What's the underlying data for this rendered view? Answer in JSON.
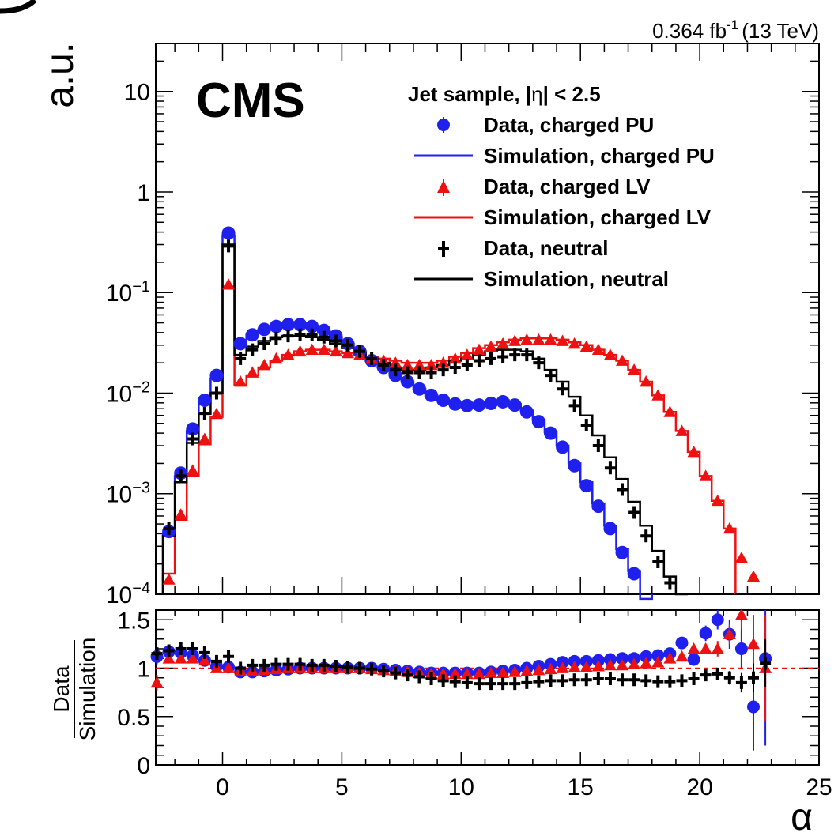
{
  "header": {
    "lumi_value": "0.364 fb",
    "lumi_exp": "-1",
    "lumi_energy": "(13 TeV)"
  },
  "chart_data": [
    {
      "type": "line",
      "name": "main-panel",
      "ylabel": "a.u.",
      "experiment": "CMS",
      "legend_title_prefix": "Jet sample, |",
      "legend_title_mid": "η",
      "legend_title_suffix": "| < 2.5",
      "legend_position": "top-right",
      "yscale": "log",
      "xlim": [
        -2.8,
        25
      ],
      "ylim": [
        0.0001,
        30
      ],
      "xticks": [
        0,
        5,
        10,
        15,
        20,
        25
      ],
      "yticks": [
        {
          "value": 10,
          "base": "10",
          "exp": ""
        },
        {
          "value": 1,
          "base": "1",
          "exp": ""
        },
        {
          "value": 0.1,
          "base": "10",
          "exp": "−1"
        },
        {
          "value": 0.01,
          "base": "10",
          "exp": "−2"
        },
        {
          "value": 0.001,
          "base": "10",
          "exp": "−3"
        },
        {
          "value": 0.0001,
          "base": "10",
          "exp": "−4"
        }
      ],
      "x": [
        -2.25,
        -1.75,
        -1.25,
        -0.75,
        -0.25,
        0.25,
        0.75,
        1.25,
        1.75,
        2.25,
        2.75,
        3.25,
        3.75,
        4.25,
        4.75,
        5.25,
        5.75,
        6.25,
        6.75,
        7.25,
        7.75,
        8.25,
        8.75,
        9.25,
        9.75,
        10.25,
        10.75,
        11.25,
        11.75,
        12.25,
        12.75,
        13.25,
        13.75,
        14.25,
        14.75,
        15.25,
        15.75,
        16.25,
        16.75,
        17.25,
        17.75,
        18.25,
        18.75,
        19.25,
        19.75,
        20.25,
        20.75,
        21.25,
        21.75,
        22.25,
        22.75
      ],
      "series": [
        {
          "name": "Data, charged PU",
          "kind": "data",
          "marker": "circle",
          "color": "#2020ee",
          "values": [
            0.00042,
            0.0016,
            0.0044,
            0.0085,
            0.015,
            0.39,
            0.031,
            0.038,
            0.043,
            0.046,
            0.048,
            0.048,
            0.046,
            0.042,
            0.037,
            0.031,
            0.026,
            0.021,
            0.018,
            0.015,
            0.013,
            0.011,
            0.0095,
            0.0085,
            0.0078,
            0.0075,
            0.0076,
            0.0079,
            0.0082,
            0.0076,
            0.0065,
            0.0052,
            0.004,
            0.0029,
            0.0019,
            0.0012,
            0.00075,
            0.00045,
            0.00026,
            0.00016,
            0.0001,
            null,
            null,
            null,
            null,
            null,
            null,
            null,
            null,
            null,
            null
          ]
        },
        {
          "name": "Simulation, charged PU",
          "kind": "sim",
          "color": "#2020ee",
          "values": [
            0.0004,
            0.0015,
            0.0042,
            0.008,
            0.014,
            0.37,
            0.03,
            0.038,
            0.043,
            0.046,
            0.047,
            0.047,
            0.045,
            0.041,
            0.036,
            0.031,
            0.026,
            0.021,
            0.018,
            0.015,
            0.013,
            0.011,
            0.0095,
            0.0085,
            0.008,
            0.0076,
            0.0078,
            0.0082,
            0.0085,
            0.0078,
            0.0067,
            0.0054,
            0.0041,
            0.003,
            0.002,
            0.0013,
            0.0008,
            0.00048,
            0.00028,
            0.00017,
            9e-05,
            null,
            null,
            null,
            null,
            null,
            null,
            null,
            null,
            null,
            null
          ]
        },
        {
          "name": "Data, charged LV",
          "kind": "data",
          "marker": "triangle",
          "color": "#ee1111",
          "values": [
            0.00014,
            0.00062,
            0.0017,
            0.0035,
            0.0062,
            0.12,
            0.013,
            0.016,
            0.019,
            0.022,
            0.024,
            0.026,
            0.027,
            0.027,
            0.026,
            0.025,
            0.024,
            0.022,
            0.021,
            0.02,
            0.019,
            0.019,
            0.019,
            0.02,
            0.022,
            0.024,
            0.027,
            0.029,
            0.031,
            0.033,
            0.034,
            0.034,
            0.034,
            0.033,
            0.031,
            0.029,
            0.027,
            0.024,
            0.021,
            0.017,
            0.013,
            0.0095,
            0.0065,
            0.0042,
            0.0026,
            0.0015,
            0.00085,
            0.00045,
            0.00023,
            0.00015,
            0.0001
          ]
        },
        {
          "name": "Simulation, charged LV",
          "kind": "sim",
          "color": "#ee1111",
          "values": [
            0.00016,
            0.00055,
            0.0015,
            0.0031,
            0.0058,
            0.115,
            0.012,
            0.015,
            0.018,
            0.021,
            0.024,
            0.026,
            0.027,
            0.027,
            0.026,
            0.025,
            0.024,
            0.023,
            0.022,
            0.021,
            0.02,
            0.02,
            0.02,
            0.021,
            0.023,
            0.025,
            0.028,
            0.03,
            0.032,
            0.034,
            0.035,
            0.035,
            0.035,
            0.034,
            0.032,
            0.03,
            0.027,
            0.024,
            0.021,
            0.017,
            0.013,
            0.0095,
            0.0065,
            0.0042,
            0.0026,
            0.0015,
            0.00085,
            0.00045,
            null,
            null,
            null
          ]
        },
        {
          "name": "Data, neutral",
          "kind": "data",
          "marker": "cross",
          "color": "#000000",
          "values": [
            0.00045,
            0.0015,
            0.0035,
            0.0063,
            0.01,
            0.29,
            0.022,
            0.027,
            0.031,
            0.035,
            0.037,
            0.038,
            0.038,
            0.036,
            0.033,
            0.03,
            0.026,
            0.022,
            0.019,
            0.017,
            0.016,
            0.016,
            0.016,
            0.017,
            0.018,
            0.019,
            0.021,
            0.022,
            0.023,
            0.024,
            0.024,
            0.02,
            0.015,
            0.011,
            0.0075,
            0.0048,
            0.003,
            0.0018,
            0.0011,
            0.00065,
            0.00038,
            0.00021,
            0.00013,
            null,
            null,
            null,
            null,
            null,
            null,
            null,
            null
          ]
        },
        {
          "name": "Simulation, neutral",
          "kind": "sim",
          "color": "#000000",
          "values": [
            0.00038,
            0.0013,
            0.0032,
            0.0062,
            0.01,
            0.3,
            0.024,
            0.029,
            0.033,
            0.036,
            0.037,
            0.037,
            0.036,
            0.034,
            0.031,
            0.028,
            0.025,
            0.022,
            0.02,
            0.018,
            0.017,
            0.017,
            0.018,
            0.019,
            0.021,
            0.022,
            0.024,
            0.026,
            0.027,
            0.027,
            0.026,
            0.022,
            0.017,
            0.013,
            0.0092,
            0.006,
            0.0038,
            0.0023,
            0.0014,
            0.00083,
            0.00048,
            0.00027,
            0.00015,
            0.0001,
            null,
            null,
            null,
            null,
            null,
            null,
            null
          ]
        }
      ]
    },
    {
      "type": "scatter",
      "name": "ratio-panel",
      "ylabel_top": "Data",
      "ylabel_bottom": "Simulation",
      "xlabel": "α",
      "xlim": [
        -2.8,
        25
      ],
      "ylim": [
        0,
        1.6
      ],
      "reference_line": 1,
      "xticks": [
        0,
        5,
        10,
        15,
        20,
        25
      ],
      "yticks": [
        {
          "value": 1.5,
          "label": "1.5"
        },
        {
          "value": 1,
          "label": "1"
        },
        {
          "value": 0.5,
          "label": "0.5"
        },
        {
          "value": 0,
          "label": "0"
        }
      ],
      "x": [
        -2.75,
        -2.25,
        -1.75,
        -1.25,
        -0.75,
        -0.25,
        0.25,
        0.75,
        1.25,
        1.75,
        2.25,
        2.75,
        3.25,
        3.75,
        4.25,
        4.75,
        5.25,
        5.75,
        6.25,
        6.75,
        7.25,
        7.75,
        8.25,
        8.75,
        9.25,
        9.75,
        10.25,
        10.75,
        11.25,
        11.75,
        12.25,
        12.75,
        13.25,
        13.75,
        14.25,
        14.75,
        15.25,
        15.75,
        16.25,
        16.75,
        17.25,
        17.75,
        18.25,
        18.75,
        19.25,
        19.75,
        20.25,
        20.75,
        21.25,
        21.75,
        22.25,
        22.75
      ],
      "series": [
        {
          "name": "Data, charged PU",
          "marker": "circle",
          "color": "#2020ee",
          "values": [
            1.12,
            1.17,
            1.16,
            1.13,
            1.08,
            1.02,
            1.01,
            0.96,
            0.96,
            0.97,
            0.98,
            0.99,
            1.0,
            1.0,
            1.0,
            1.0,
            1.0,
            1.0,
            1.0,
            0.99,
            0.98,
            0.97,
            0.96,
            0.95,
            0.95,
            0.95,
            0.95,
            0.95,
            0.96,
            0.97,
            0.98,
            1.0,
            1.02,
            1.04,
            1.06,
            1.07,
            1.07,
            1.08,
            1.09,
            1.1,
            1.1,
            1.12,
            1.13,
            1.15,
            1.26,
            1.09,
            1.36,
            1.5,
            1.35,
            1.2,
            0.6,
            1.1
          ],
          "errors": [
            0.08,
            0.05,
            0.04,
            0.03,
            0.02,
            0.02,
            0.01,
            0.01,
            0.01,
            0.01,
            0.01,
            0.01,
            0.01,
            0.01,
            0.01,
            0.01,
            0.01,
            0.01,
            0.01,
            0.01,
            0.01,
            0.01,
            0.01,
            0.01,
            0.01,
            0.01,
            0.01,
            0.01,
            0.01,
            0.01,
            0.01,
            0.01,
            0.01,
            0.01,
            0.01,
            0.01,
            0.01,
            0.02,
            0.02,
            0.02,
            0.03,
            0.04,
            0.05,
            0.05,
            0.06,
            0.06,
            0.08,
            0.1,
            0.15,
            0.2,
            0.45,
            0.9
          ]
        },
        {
          "name": "Data, charged LV",
          "marker": "triangle",
          "color": "#ee1111",
          "values": [
            0.85,
            1.1,
            1.1,
            1.1,
            1.08,
            1.0,
            1.0,
            0.97,
            0.97,
            0.98,
            0.99,
            1.0,
            1.0,
            1.0,
            1.0,
            1.0,
            1.0,
            1.0,
            0.99,
            0.98,
            0.97,
            0.96,
            0.95,
            0.94,
            0.94,
            0.94,
            0.94,
            0.94,
            0.95,
            0.95,
            0.96,
            0.97,
            0.98,
            0.99,
            1.0,
            1.01,
            1.01,
            1.02,
            1.03,
            1.03,
            1.04,
            1.05,
            1.06,
            1.1,
            1.12,
            1.2,
            1.2,
            1.2,
            1.35,
            1.55,
            1.25,
            1.0
          ],
          "errors": [
            0.08,
            0.05,
            0.04,
            0.03,
            0.02,
            0.02,
            0.01,
            0.01,
            0.01,
            0.01,
            0.01,
            0.01,
            0.01,
            0.01,
            0.01,
            0.01,
            0.01,
            0.01,
            0.01,
            0.01,
            0.01,
            0.01,
            0.01,
            0.01,
            0.01,
            0.01,
            0.01,
            0.01,
            0.01,
            0.01,
            0.01,
            0.01,
            0.01,
            0.01,
            0.01,
            0.01,
            0.01,
            0.01,
            0.01,
            0.01,
            0.01,
            0.02,
            0.02,
            0.03,
            0.03,
            0.04,
            0.05,
            0.08,
            0.1,
            0.15,
            0.3,
            0.55
          ]
        },
        {
          "name": "Data, neutral",
          "marker": "cross",
          "color": "#000000",
          "values": [
            1.15,
            1.18,
            1.2,
            1.2,
            1.16,
            1.07,
            1.12,
            1.0,
            1.03,
            1.03,
            1.04,
            1.04,
            1.04,
            1.03,
            1.03,
            1.02,
            1.01,
            1.0,
            0.99,
            0.97,
            0.95,
            0.93,
            0.91,
            0.89,
            0.87,
            0.86,
            0.85,
            0.84,
            0.84,
            0.84,
            0.84,
            0.85,
            0.86,
            0.87,
            0.87,
            0.88,
            0.88,
            0.89,
            0.89,
            0.88,
            0.88,
            0.87,
            0.86,
            0.86,
            0.87,
            0.89,
            0.93,
            0.94,
            0.9,
            0.85,
            0.9,
            1.05
          ],
          "errors": [
            0.06,
            0.04,
            0.03,
            0.03,
            0.02,
            0.02,
            0.01,
            0.01,
            0.01,
            0.01,
            0.01,
            0.01,
            0.01,
            0.01,
            0.01,
            0.01,
            0.01,
            0.01,
            0.01,
            0.01,
            0.01,
            0.01,
            0.01,
            0.01,
            0.01,
            0.01,
            0.01,
            0.01,
            0.01,
            0.01,
            0.01,
            0.01,
            0.01,
            0.01,
            0.01,
            0.01,
            0.01,
            0.02,
            0.02,
            0.02,
            0.03,
            0.03,
            0.03,
            0.04,
            0.04,
            0.05,
            0.05,
            0.06,
            0.07,
            0.1,
            0.15,
            0.25
          ]
        }
      ]
    }
  ]
}
